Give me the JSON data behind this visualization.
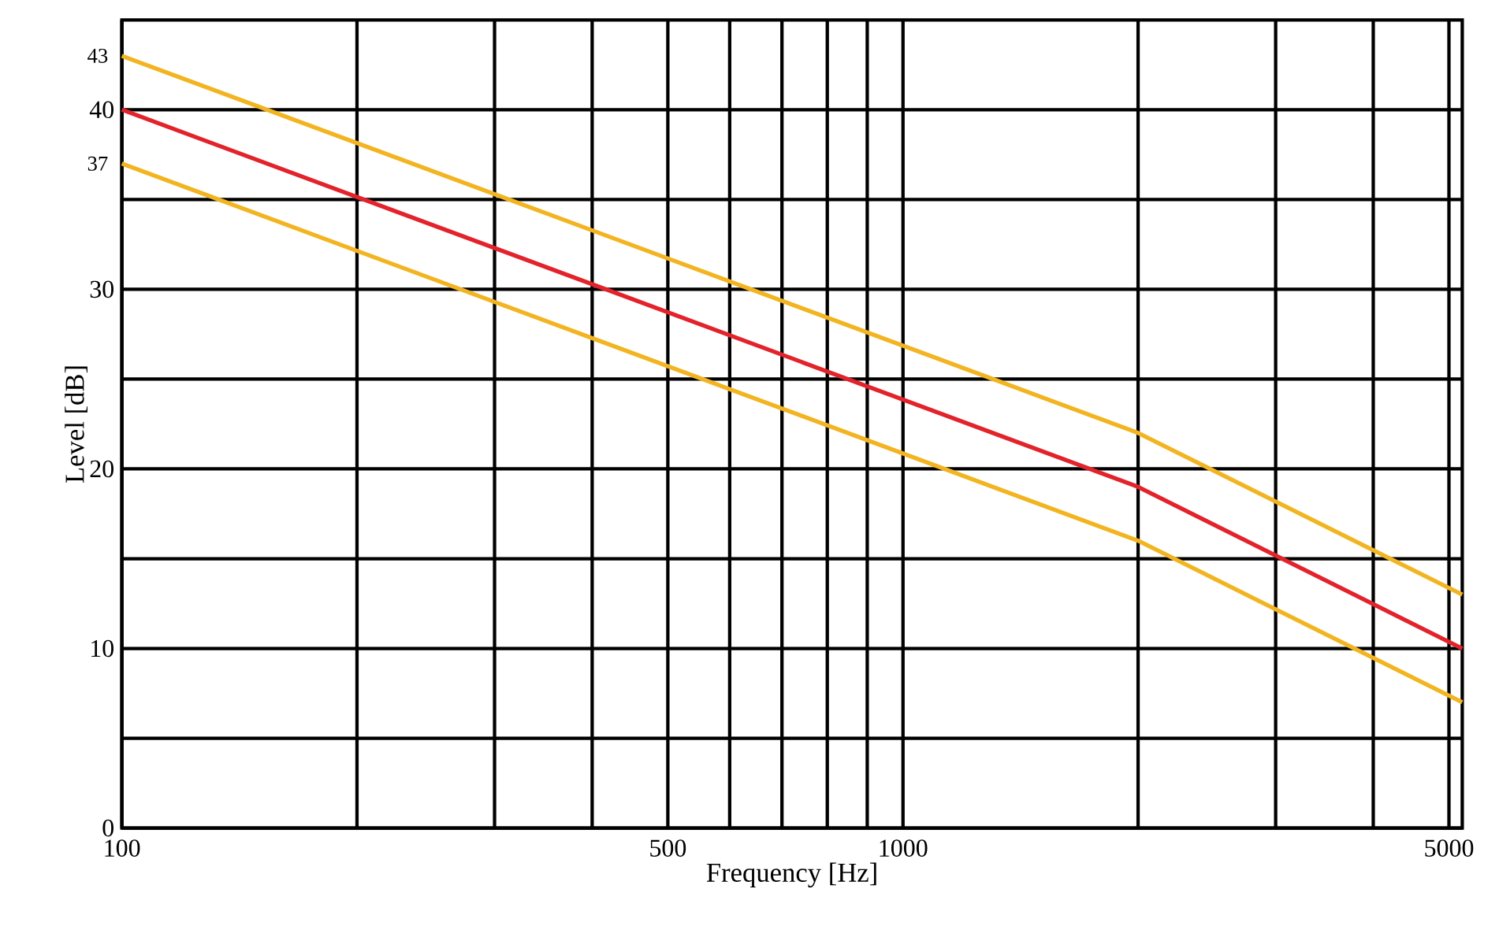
{
  "chart_data": {
    "type": "line",
    "xlabel": "Frequency [Hz]",
    "ylabel": "Level [dB]",
    "log": "x",
    "grid": true,
    "marker": "none",
    "line_style": "solid",
    "xlim": [
      100,
      5200
    ],
    "ylim": [
      0,
      45
    ],
    "xticks": [
      100,
      {
        "value": 200,
        "label": null
      },
      {
        "value": 300,
        "label": null
      },
      {
        "value": 400,
        "label": null
      },
      500,
      {
        "value": 600,
        "label": null
      },
      {
        "value": 700,
        "label": null
      },
      {
        "value": 800,
        "label": null
      },
      {
        "value": 900,
        "label": null
      },
      1000,
      {
        "value": 2000,
        "label": null
      },
      {
        "value": 3000,
        "label": null
      },
      {
        "value": 4000,
        "label": null
      },
      5000
    ],
    "yticks": [
      0,
      {
        "value": 5,
        "label": null
      },
      10,
      {
        "value": 15,
        "label": null
      },
      20,
      {
        "value": 25,
        "label": null
      },
      30,
      {
        "value": 35,
        "label": null
      },
      40
    ],
    "x": [
      100,
      2000,
      5200
    ],
    "series": [
      {
        "color": "#f2b420",
        "values": [
          43,
          22,
          13
        ]
      },
      {
        "color": "#e3232c",
        "values": [
          40,
          19,
          10
        ]
      },
      {
        "color": "#f2b420",
        "values": [
          37,
          16,
          7
        ]
      }
    ],
    "annotations": [
      {
        "text": "43",
        "x": 100,
        "y": 43
      },
      {
        "text": "37",
        "x": 100,
        "y": 37
      }
    ]
  }
}
